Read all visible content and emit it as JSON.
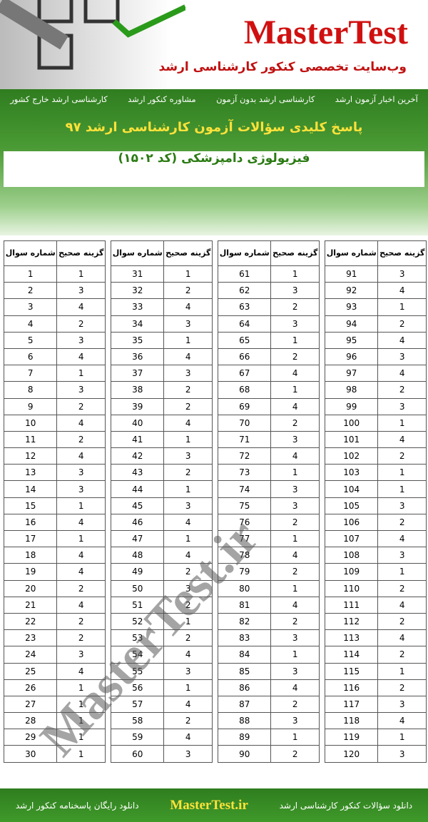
{
  "header": {
    "brand": "MasterTest",
    "tagline": "وب‌سایت تخصصی کنکور کارشناسی ارشد"
  },
  "nav": [
    "آخرین اخبار آزمون ارشد",
    "کارشناسی ارشد بدون آزمون",
    "مشاوره کنکور ارشد",
    "کارشناسی ارشد خارج کشور"
  ],
  "title": "پاسخ کلیدی سؤالات آزمون کارشناسی ارشد ۹۷",
  "subject": "فیزیولوژی دامپزشکی  (کد ۱۵۰۲)",
  "watermark": "MasterTest.ir",
  "table": {
    "headers": [
      "شماره سوال",
      "گزینه صحیح"
    ],
    "groups": [
      {
        "questions": [
          1,
          2,
          3,
          4,
          5,
          6,
          7,
          8,
          9,
          10,
          11,
          12,
          13,
          14,
          15,
          16,
          17,
          18,
          19,
          20,
          21,
          22,
          23,
          24,
          25,
          26,
          27,
          28,
          29,
          30
        ],
        "answers": [
          1,
          3,
          4,
          2,
          3,
          4,
          1,
          3,
          2,
          4,
          2,
          4,
          3,
          3,
          1,
          4,
          1,
          4,
          4,
          2,
          4,
          2,
          2,
          3,
          4,
          1,
          1,
          1,
          1,
          1
        ]
      },
      {
        "questions": [
          31,
          32,
          33,
          34,
          35,
          36,
          37,
          38,
          39,
          40,
          41,
          42,
          43,
          44,
          45,
          46,
          47,
          48,
          49,
          50,
          51,
          52,
          53,
          54,
          55,
          56,
          57,
          58,
          59,
          60
        ],
        "answers": [
          1,
          2,
          4,
          3,
          1,
          4,
          3,
          2,
          2,
          4,
          1,
          3,
          2,
          1,
          3,
          4,
          1,
          4,
          2,
          3,
          2,
          1,
          2,
          4,
          3,
          1,
          4,
          2,
          4,
          3
        ]
      },
      {
        "questions": [
          61,
          62,
          63,
          64,
          65,
          66,
          67,
          68,
          69,
          70,
          71,
          72,
          73,
          74,
          75,
          76,
          77,
          78,
          79,
          80,
          81,
          82,
          83,
          84,
          85,
          86,
          87,
          88,
          89,
          90
        ],
        "answers": [
          1,
          3,
          2,
          3,
          1,
          2,
          4,
          1,
          4,
          2,
          3,
          4,
          1,
          3,
          3,
          2,
          1,
          4,
          2,
          1,
          4,
          2,
          3,
          1,
          3,
          4,
          2,
          3,
          1,
          2
        ]
      },
      {
        "questions": [
          91,
          92,
          93,
          94,
          95,
          96,
          97,
          98,
          99,
          100,
          101,
          102,
          103,
          104,
          105,
          106,
          107,
          108,
          109,
          110,
          111,
          112,
          113,
          114,
          115,
          116,
          117,
          118,
          119,
          120
        ],
        "answers": [
          3,
          4,
          1,
          2,
          4,
          3,
          4,
          2,
          3,
          1,
          4,
          2,
          1,
          1,
          3,
          2,
          4,
          3,
          1,
          2,
          4,
          2,
          4,
          2,
          1,
          2,
          3,
          4,
          1,
          3
        ]
      }
    ]
  },
  "footer": [
    "دانلود سؤالات کنکور کارشناسی ارشد",
    "MasterTest.ir",
    "دانلود رایگان پاسخنامه کنکور ارشد"
  ]
}
